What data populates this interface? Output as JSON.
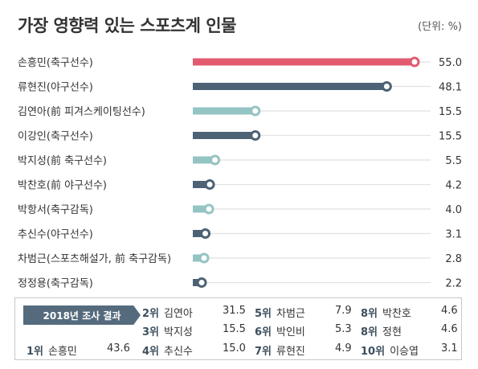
{
  "title": "가장 영향력 있는 스포츠계 인물",
  "unit": "(단위: %)",
  "colors": {
    "highlight": "#e15a70",
    "dark": "#4d6275",
    "light": "#94c4c3",
    "track": "#e1e1e1"
  },
  "chart_data": {
    "type": "bar",
    "orientation": "horizontal",
    "title": "가장 영향력 있는 스포츠계 인물",
    "unit": "(단위: %)",
    "xlim": [
      0,
      55
    ],
    "categories": [
      "손흥민(축구선수)",
      "류현진(야구선수)",
      "김연아(前 피겨스케이팅선수)",
      "이강인(축구선수)",
      "박지성(前 축구선수)",
      "박찬호(前 야구선수)",
      "박항서(축구감독)",
      "추신수(야구선수)",
      "차범근(스포츠해설가, 前 축구감독)",
      "정정용(축구감독)"
    ],
    "values": [
      55.0,
      48.1,
      15.5,
      15.5,
      5.5,
      4.2,
      4.0,
      3.1,
      2.8,
      2.2
    ],
    "value_labels": [
      "55.0",
      "48.1",
      "15.5",
      "15.5",
      "5.5",
      "4.2",
      "4.0",
      "3.1",
      "2.8",
      "2.2"
    ],
    "bar_colors": [
      "highlight",
      "dark",
      "light",
      "dark",
      "light",
      "dark",
      "light",
      "dark",
      "light",
      "dark"
    ]
  },
  "summary": {
    "label": "2018년 조사 결과",
    "ranks": [
      {
        "rank": "1위",
        "name": "손흥민",
        "value": "43.6"
      },
      {
        "rank": "2위",
        "name": "김연아",
        "value": "31.5"
      },
      {
        "rank": "3위",
        "name": "박지성",
        "value": "15.5"
      },
      {
        "rank": "4위",
        "name": "추신수",
        "value": "15.0"
      },
      {
        "rank": "5위",
        "name": "차범근",
        "value": "7.9"
      },
      {
        "rank": "6위",
        "name": "박인비",
        "value": "5.3"
      },
      {
        "rank": "7위",
        "name": "류현진",
        "value": "4.9"
      },
      {
        "rank": "8위",
        "name": "박찬호",
        "value": "4.6"
      },
      {
        "rank": "8위",
        "name": "정현",
        "value": "4.6"
      },
      {
        "rank": "10위",
        "name": "이승엽",
        "value": "3.1"
      }
    ]
  }
}
